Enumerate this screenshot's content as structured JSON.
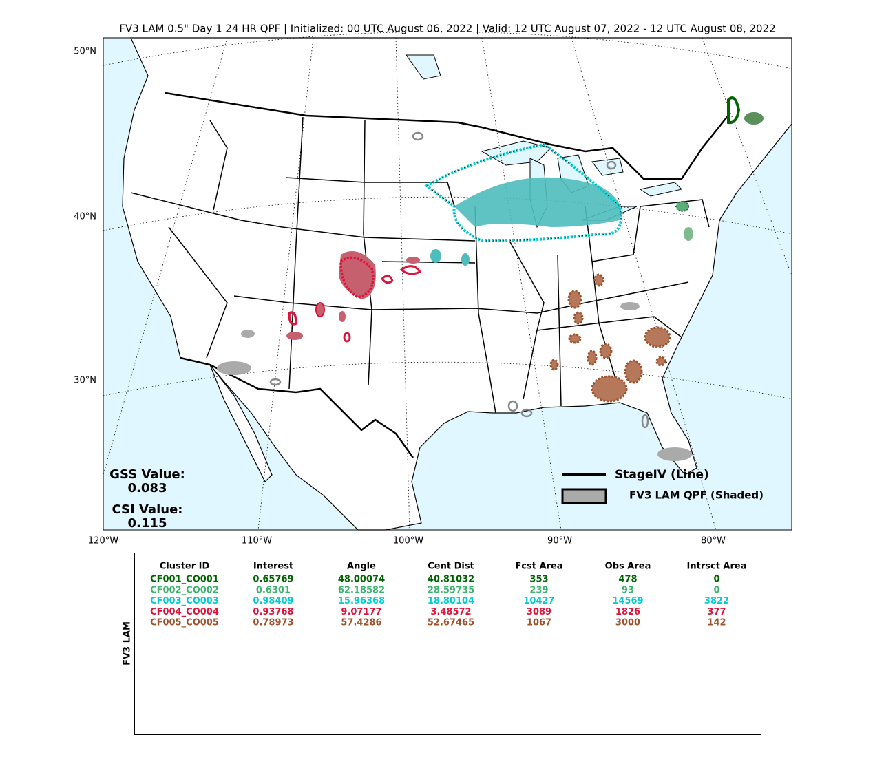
{
  "title": "FV3 LAM 0.5\" Day 1 24 HR QPF | Initialized: 00 UTC August 06, 2022 | Valid: 12 UTC August 07, 2022 - 12 UTC August 08, 2022",
  "map": {
    "lat_labels": [
      "50°N",
      "40°N",
      "30°N"
    ],
    "lon_labels": [
      "120°W",
      "110°W",
      "100°W",
      "90°W",
      "80°W"
    ],
    "scores": [
      {
        "label": "GSS Value:",
        "value": "0.083"
      },
      {
        "label": "CSI Value:",
        "value": "0.115"
      }
    ],
    "legend": [
      "StageIV (Line)",
      "FV3 LAM QPF (Shaded)"
    ]
  },
  "table": {
    "side_label": "FV3 LAM",
    "header": [
      "Cluster ID",
      "Interest",
      "Angle",
      "Cent Dist",
      "Fcst Area",
      "Obs Area",
      "Intrsct Area"
    ],
    "rows": [
      {
        "color": "#006400",
        "cells": [
          "CF001_CO001",
          "0.65769",
          "48.00074",
          "40.81032",
          "353",
          "478",
          "0"
        ]
      },
      {
        "color": "#3cb371",
        "cells": [
          "CF002_CO002",
          "0.6301",
          "62.18582",
          "28.59735",
          "239",
          "93",
          "0"
        ]
      },
      {
        "color": "#00ced1",
        "cells": [
          "CF003_CO003",
          "0.98409",
          "15.96368",
          "18.80104",
          "10427",
          "14569",
          "3822"
        ]
      },
      {
        "color": "#dc143c",
        "cells": [
          "CF004_CO004",
          "0.93768",
          "9.07177",
          "3.48572",
          "3089",
          "1826",
          "377"
        ]
      },
      {
        "color": "#a0522d",
        "cells": [
          "CF005_CO005",
          "0.78973",
          "57.4286",
          "52.67465",
          "1067",
          "3000",
          "142"
        ]
      }
    ]
  }
}
